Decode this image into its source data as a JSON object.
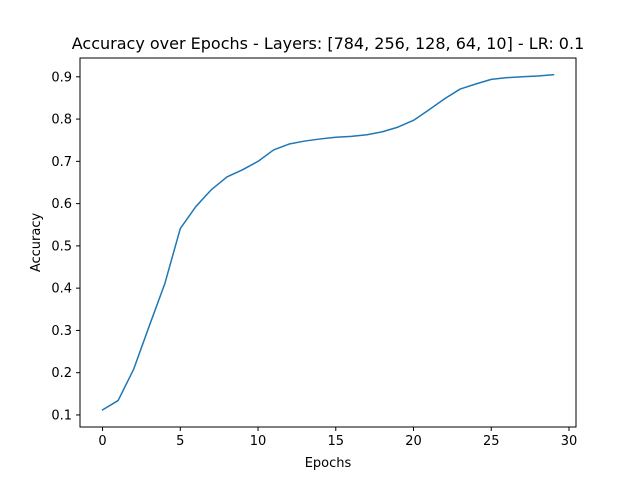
{
  "chart_data": {
    "type": "line",
    "title": "Accuracy over Epochs - Layers: [784, 256, 128, 64, 10] - LR: 0.1",
    "xlabel": "Epochs",
    "ylabel": "Accuracy",
    "xlim": [
      -1.45,
      30.45
    ],
    "ylim": [
      0.0715,
      0.9445
    ],
    "x_ticks": [
      0,
      5,
      10,
      15,
      20,
      25,
      30
    ],
    "y_ticks": [
      0.1,
      0.2,
      0.3,
      0.4,
      0.5,
      0.6,
      0.7,
      0.8,
      0.9
    ],
    "grid": false,
    "series": [
      {
        "color": "#1f77b4",
        "x": [
          0,
          1,
          2,
          3,
          4,
          5,
          6,
          7,
          8,
          9,
          10,
          11,
          12,
          13,
          14,
          15,
          16,
          17,
          18,
          19,
          20,
          21,
          22,
          23,
          24,
          25,
          26,
          27,
          28,
          29
        ],
        "y": [
          0.112,
          0.134,
          0.208,
          0.31,
          0.41,
          0.541,
          0.593,
          0.633,
          0.663,
          0.68,
          0.7,
          0.727,
          0.741,
          0.748,
          0.753,
          0.757,
          0.759,
          0.763,
          0.77,
          0.781,
          0.797,
          0.822,
          0.848,
          0.871,
          0.883,
          0.894,
          0.898,
          0.9,
          0.902,
          0.905
        ]
      }
    ]
  }
}
